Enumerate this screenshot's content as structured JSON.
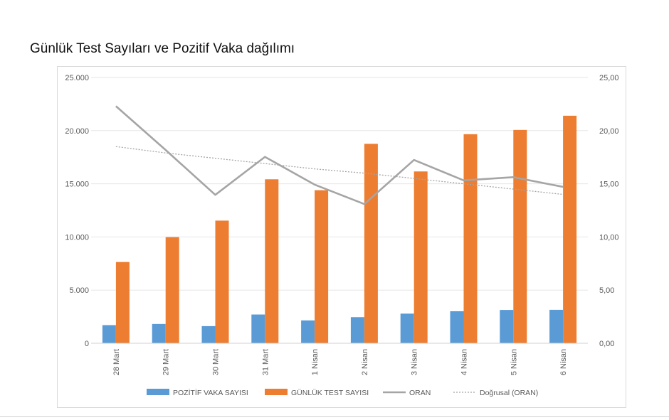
{
  "title": "Günlük Test Sayıları ve Pozitif Vaka dağılımı",
  "colors": {
    "pozitif": "#5b9bd5",
    "test": "#ed7d31",
    "oran": "#a5a5a5",
    "trend": "#a5a5a5",
    "grid": "#e6e6e6",
    "axis_text": "#595959"
  },
  "chart_data": {
    "type": "bar",
    "title": "Günlük Test Sayıları ve Pozitif Vaka dağılımı",
    "categories": [
      "28 Mart",
      "29 Mart",
      "30 Mart",
      "31 Mart",
      "1 Nisan",
      "2 Nisan",
      "3 Nisan",
      "4 Nisan",
      "5 Nisan",
      "6 Nisan"
    ],
    "series": [
      {
        "name": "POZİTİF VAKA SAYISI",
        "type": "bar",
        "axis": "left",
        "values": [
          1704,
          1815,
          1610,
          2704,
          2148,
          2456,
          2786,
          3013,
          3135,
          3148
        ]
      },
      {
        "name": "GÜNLÜK TEST SAYISI",
        "type": "bar",
        "axis": "left",
        "values": [
          7641,
          9982,
          11535,
          15422,
          14396,
          18757,
          16160,
          19664,
          20065,
          21400
        ]
      },
      {
        "name": "ORAN",
        "type": "line",
        "axis": "right",
        "values": [
          22.3,
          18.18,
          13.96,
          17.53,
          14.92,
          13.09,
          17.24,
          15.32,
          15.62,
          14.71
        ]
      },
      {
        "name": "Doğrusal (ORAN)",
        "type": "trendline",
        "axis": "right",
        "values": [
          18.5,
          17.9,
          17.4,
          16.9,
          16.4,
          16.0,
          15.5,
          15.0,
          14.5,
          14.0
        ]
      }
    ],
    "y_left": {
      "min": 0,
      "max": 25000,
      "ticks": [
        0,
        5000,
        10000,
        15000,
        20000,
        25000
      ],
      "tick_labels": [
        "0",
        "5.000",
        "10.000",
        "15.000",
        "20.000",
        "25.000"
      ]
    },
    "y_right": {
      "min": 0,
      "max": 25,
      "ticks": [
        0,
        5,
        10,
        15,
        20,
        25
      ],
      "tick_labels": [
        "0,00",
        "5,00",
        "10,00",
        "15,00",
        "20,00",
        "25,00"
      ]
    },
    "grid": true,
    "legend": "bottom"
  }
}
